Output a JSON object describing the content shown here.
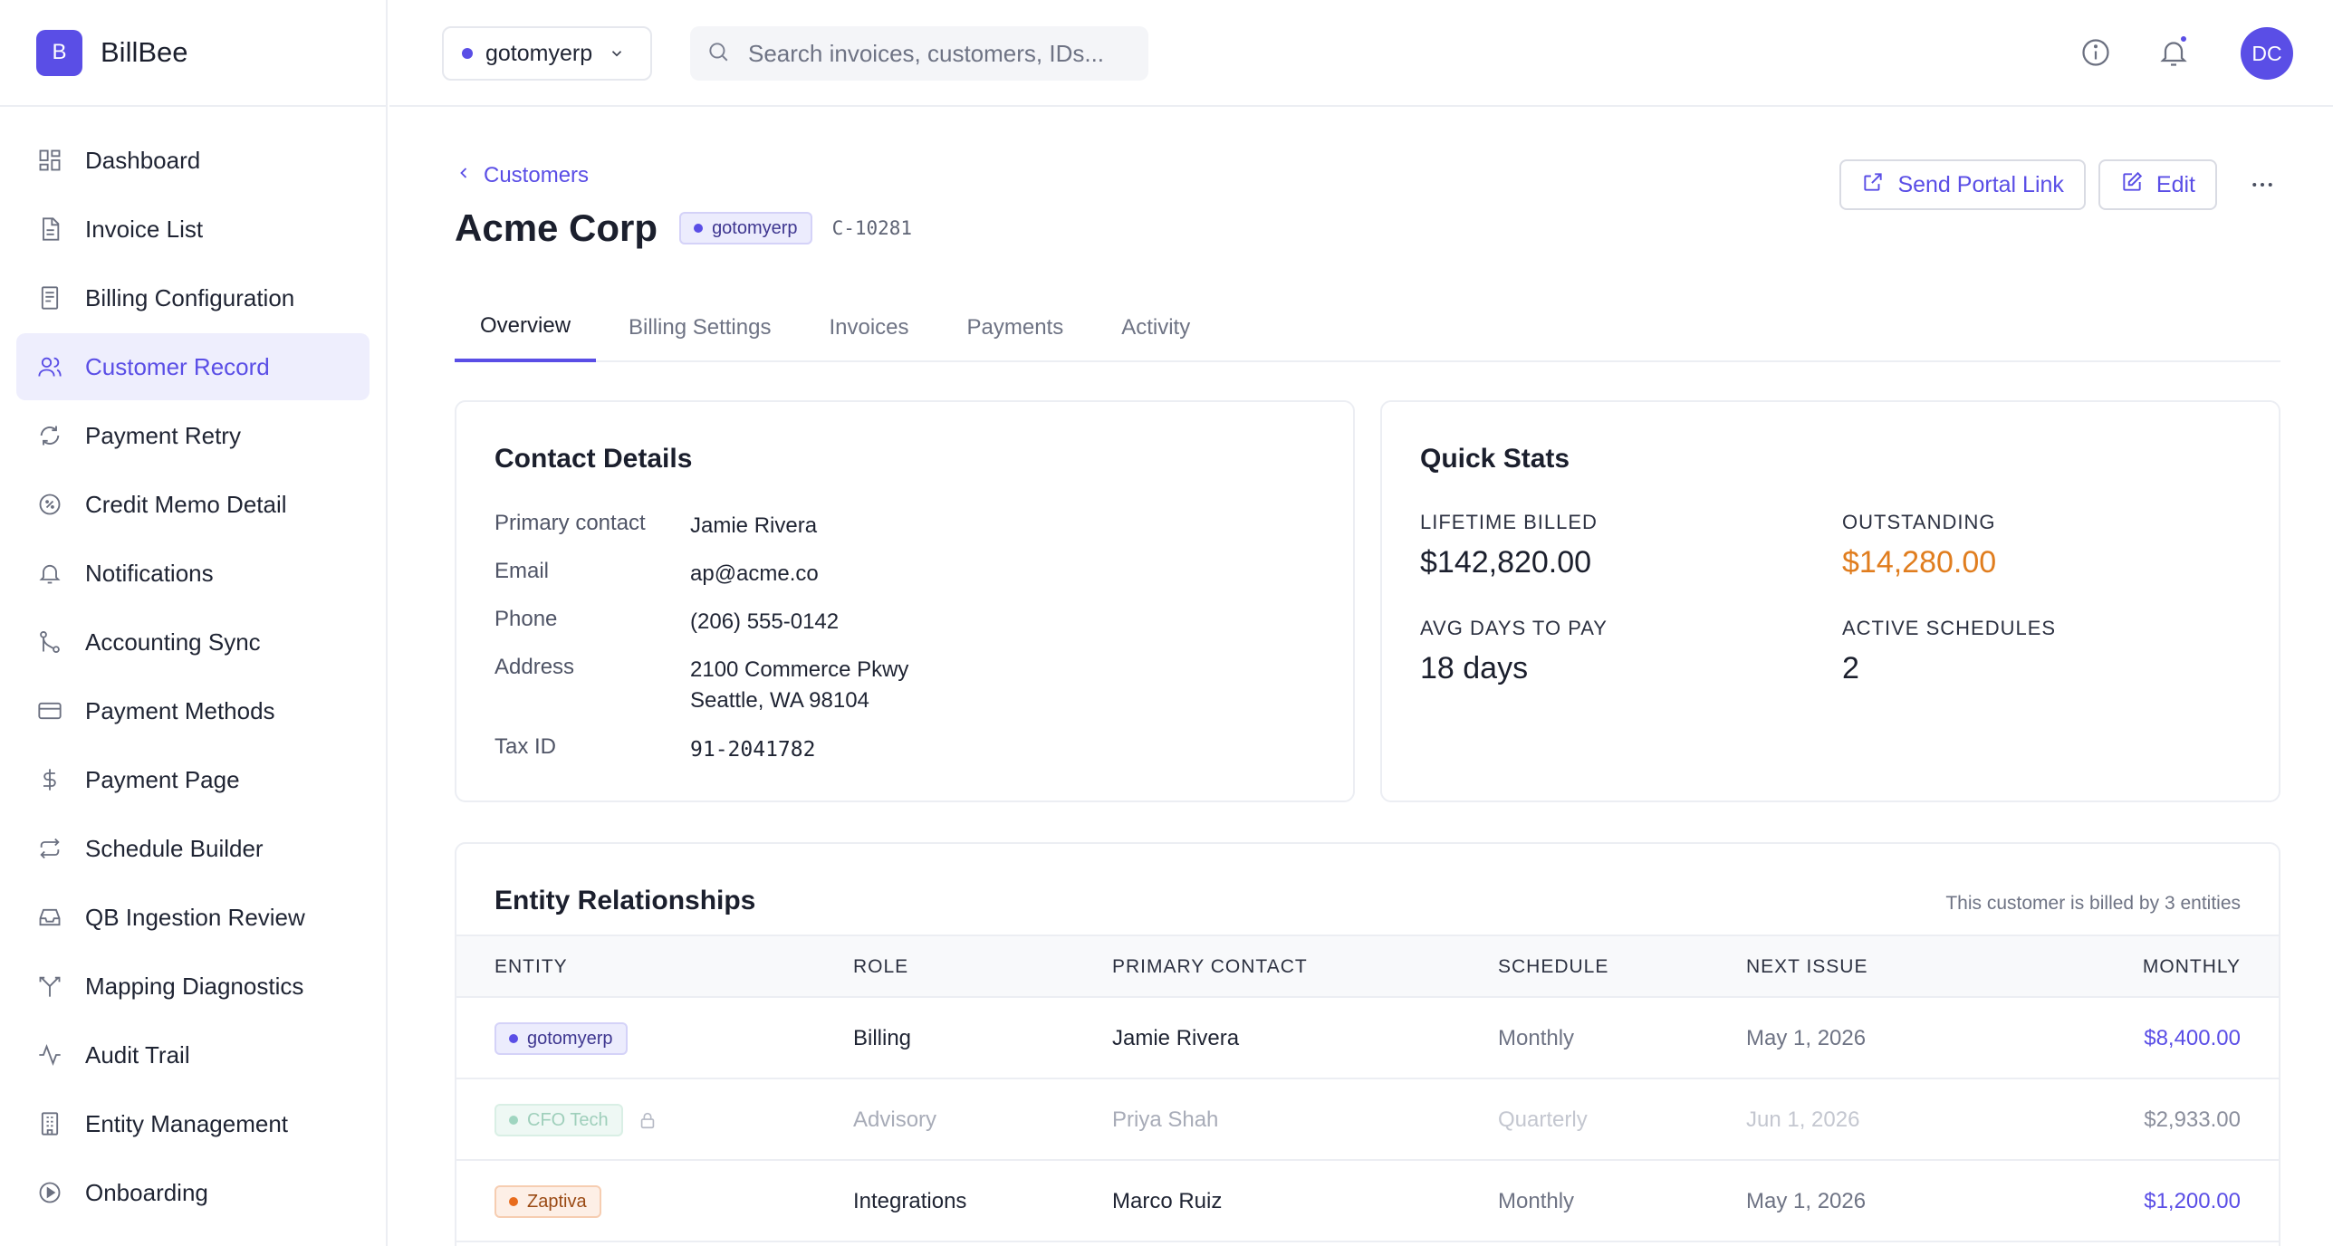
{
  "brand": {
    "logo_letter": "B",
    "name": "BillBee",
    "accent": "#5a4ee6"
  },
  "sidebar": {
    "items": [
      {
        "label": "Dashboard",
        "icon": "dashboard-icon"
      },
      {
        "label": "Invoice List",
        "icon": "document-icon"
      },
      {
        "label": "Billing Configuration",
        "icon": "receipt-icon"
      },
      {
        "label": "Customer Record",
        "icon": "users-icon",
        "active": true
      },
      {
        "label": "Payment Retry",
        "icon": "refresh-icon"
      },
      {
        "label": "Credit Memo Detail",
        "icon": "percent-badge-icon"
      },
      {
        "label": "Notifications",
        "icon": "bell-icon"
      },
      {
        "label": "Accounting Sync",
        "icon": "git-merge-icon"
      },
      {
        "label": "Payment Methods",
        "icon": "credit-card-icon"
      },
      {
        "label": "Payment Page",
        "icon": "dollar-icon"
      },
      {
        "label": "Schedule Builder",
        "icon": "repeat-icon"
      },
      {
        "label": "QB Ingestion Review",
        "icon": "inbox-icon"
      },
      {
        "label": "Mapping Diagnostics",
        "icon": "split-icon"
      },
      {
        "label": "Audit Trail",
        "icon": "activity-icon"
      },
      {
        "label": "Entity Management",
        "icon": "building-icon"
      },
      {
        "label": "Onboarding",
        "icon": "play-circle-icon"
      }
    ]
  },
  "topbar": {
    "org": "gotomyerp",
    "search_placeholder": "Search invoices, customers, IDs...",
    "avatar_initials": "DC"
  },
  "header": {
    "breadcrumb": "Customers",
    "title": "Acme Corp",
    "org_badge": "gotomyerp",
    "customer_id": "C-10281",
    "send_portal_label": "Send Portal Link",
    "edit_label": "Edit"
  },
  "tabs": [
    {
      "label": "Overview",
      "active": true
    },
    {
      "label": "Billing Settings"
    },
    {
      "label": "Invoices"
    },
    {
      "label": "Payments"
    },
    {
      "label": "Activity"
    }
  ],
  "contact": {
    "title": "Contact Details",
    "rows": [
      {
        "label": "Primary contact",
        "value": "Jamie Rivera"
      },
      {
        "label": "Email",
        "value": "ap@acme.co"
      },
      {
        "label": "Phone",
        "value": "(206) 555-0142"
      },
      {
        "label": "Address",
        "value": "2100 Commerce Pkwy",
        "value2": "Seattle, WA 98104"
      },
      {
        "label": "Tax ID",
        "value": "91-2041782"
      }
    ]
  },
  "stats": {
    "title": "Quick Stats",
    "items": [
      {
        "label": "LIFETIME BILLED",
        "value": "$142,820.00"
      },
      {
        "label": "OUTSTANDING",
        "value": "$14,280.00",
        "color": "#e07d1e"
      },
      {
        "label": "AVG DAYS TO PAY",
        "value": "18 days"
      },
      {
        "label": "ACTIVE SCHEDULES",
        "value": "2"
      }
    ]
  },
  "entities": {
    "title": "Entity Relationships",
    "note": "This customer is billed by 3 entities",
    "columns": [
      "ENTITY",
      "ROLE",
      "PRIMARY CONTACT",
      "SCHEDULE",
      "NEXT ISSUE",
      "MONTHLY"
    ],
    "rows": [
      {
        "entity": "gotomyerp",
        "badge_color": "purple",
        "role": "Billing",
        "contact": "Jamie Rivera",
        "schedule": "Monthly",
        "next_issue": "May 1, 2026",
        "monthly": "$8,400.00"
      },
      {
        "entity": "CFO Tech",
        "badge_color": "teal",
        "locked": true,
        "role": "Advisory",
        "contact": "Priya Shah",
        "schedule": "Quarterly",
        "next_issue": "Jun 1, 2026",
        "monthly": "$2,933.00"
      },
      {
        "entity": "Zaptiva",
        "badge_color": "orange",
        "role": "Integrations",
        "contact": "Marco Ruiz",
        "schedule": "Monthly",
        "next_issue": "May 1, 2026",
        "monthly": "$1,200.00"
      }
    ]
  }
}
